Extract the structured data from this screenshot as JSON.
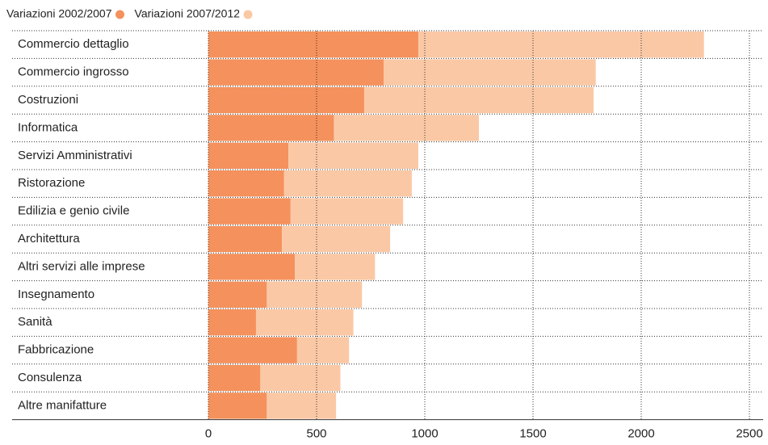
{
  "chart_data": {
    "type": "stacked_barh",
    "categories": [
      "Commercio dettaglio",
      "Commercio ingrosso",
      "Costruzioni",
      "Informatica",
      "Servizi Amministrativi",
      "Ristorazione",
      "Edilizia e genio civile",
      "Architettura",
      "Altri servizi alle imprese",
      "Insegnamento",
      "Sanità",
      "Fabbricazione",
      "Consulenza",
      "Altre manifatture"
    ],
    "series": [
      {
        "name": "Variazioni 2002/2007",
        "color": "#f5915c",
        "values": [
          970,
          810,
          720,
          580,
          370,
          350,
          380,
          340,
          400,
          270,
          220,
          410,
          240,
          270
        ]
      },
      {
        "name": "Variazioni 2007/2012",
        "color": "#fbc8a5",
        "values": [
          1320,
          980,
          1060,
          670,
          600,
          590,
          520,
          500,
          370,
          440,
          450,
          240,
          370,
          320
        ]
      }
    ],
    "xlim": [
      0,
      2500
    ],
    "xticks": [
      0,
      500,
      1000,
      1500,
      2000,
      2500
    ],
    "grid": true,
    "legend": "top-left"
  }
}
